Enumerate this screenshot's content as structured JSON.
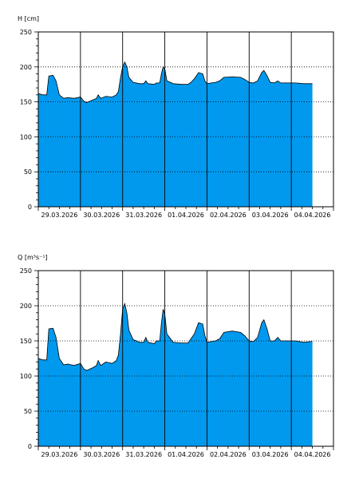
{
  "colors": {
    "fill": "#0099ee",
    "outline": "#000000",
    "grid_dotted": "#000000",
    "day_lines": "#000000",
    "frame": "#000000"
  },
  "chart_data": [
    {
      "type": "area",
      "ylabel": "H [cm]",
      "ylim": [
        0,
        250
      ],
      "yticks": [
        0,
        50,
        100,
        150,
        200,
        250
      ],
      "xlim": [
        0,
        7
      ],
      "x_tick_labels": [
        "29.03.2026",
        "30.03.2026",
        "31.03.2026",
        "01.04.2026",
        "02.04.2026",
        "03.04.2026",
        "04.04.2026"
      ],
      "grid": "dotted horizontal, solid vertical at day boundaries",
      "series": [
        {
          "points": [
            [
              0,
              162
            ],
            [
              0.1,
              160
            ],
            [
              0.2,
              160
            ],
            [
              0.25,
              187
            ],
            [
              0.35,
              188
            ],
            [
              0.42,
              180
            ],
            [
              0.5,
              160
            ],
            [
              0.6,
              155
            ],
            [
              0.7,
              156
            ],
            [
              0.85,
              155
            ],
            [
              1.0,
              157
            ],
            [
              1.08,
              151
            ],
            [
              1.15,
              149
            ],
            [
              1.3,
              153
            ],
            [
              1.38,
              155
            ],
            [
              1.42,
              160
            ],
            [
              1.48,
              155
            ],
            [
              1.6,
              158
            ],
            [
              1.75,
              157
            ],
            [
              1.85,
              160
            ],
            [
              1.9,
              165
            ],
            [
              1.95,
              185
            ],
            [
              2.0,
              200
            ],
            [
              2.05,
              207
            ],
            [
              2.1,
              200
            ],
            [
              2.15,
              185
            ],
            [
              2.25,
              178
            ],
            [
              2.4,
              176
            ],
            [
              2.5,
              176
            ],
            [
              2.55,
              180
            ],
            [
              2.6,
              176
            ],
            [
              2.75,
              175
            ],
            [
              2.8,
              177
            ],
            [
              2.88,
              177
            ],
            [
              2.92,
              190
            ],
            [
              2.96,
              200
            ],
            [
              3.0,
              197
            ],
            [
              3.05,
              180
            ],
            [
              3.2,
              176
            ],
            [
              3.4,
              175
            ],
            [
              3.55,
              175
            ],
            [
              3.62,
              178
            ],
            [
              3.7,
              183
            ],
            [
              3.8,
              192
            ],
            [
              3.9,
              190
            ],
            [
              3.95,
              180
            ],
            [
              4.0,
              176
            ],
            [
              4.2,
              178
            ],
            [
              4.3,
              180
            ],
            [
              4.4,
              185
            ],
            [
              4.6,
              186
            ],
            [
              4.8,
              185
            ],
            [
              4.9,
              182
            ],
            [
              5.0,
              178
            ],
            [
              5.1,
              177
            ],
            [
              5.2,
              180
            ],
            [
              5.3,
              192
            ],
            [
              5.35,
              195
            ],
            [
              5.42,
              188
            ],
            [
              5.5,
              178
            ],
            [
              5.6,
              177
            ],
            [
              5.68,
              180
            ],
            [
              5.75,
              177
            ],
            [
              5.9,
              177
            ],
            [
              6.1,
              177
            ],
            [
              6.3,
              176
            ],
            [
              6.45,
              176
            ],
            [
              6.5,
              176
            ]
          ]
        }
      ]
    },
    {
      "type": "area",
      "ylabel": "Q [m³s⁻¹]",
      "ylim": [
        0,
        250
      ],
      "yticks": [
        0,
        50,
        100,
        150,
        200,
        250
      ],
      "xlim": [
        0,
        7
      ],
      "x_tick_labels": [
        "29.03.2026",
        "30.03.2026",
        "31.03.2026",
        "01.04.2026",
        "02.04.2026",
        "03.04.2026",
        "04.04.2026"
      ],
      "grid": "dotted horizontal, solid vertical at day boundaries",
      "series": [
        {
          "points": [
            [
              0,
              125
            ],
            [
              0.1,
              123
            ],
            [
              0.2,
              123
            ],
            [
              0.25,
              167
            ],
            [
              0.35,
              168
            ],
            [
              0.42,
              155
            ],
            [
              0.5,
              125
            ],
            [
              0.6,
              116
            ],
            [
              0.7,
              117
            ],
            [
              0.85,
              115
            ],
            [
              1.0,
              118
            ],
            [
              1.08,
              110
            ],
            [
              1.15,
              108
            ],
            [
              1.3,
              112
            ],
            [
              1.38,
              115
            ],
            [
              1.42,
              122
            ],
            [
              1.48,
              115
            ],
            [
              1.6,
              120
            ],
            [
              1.75,
              118
            ],
            [
              1.85,
              122
            ],
            [
              1.9,
              130
            ],
            [
              1.95,
              160
            ],
            [
              2.0,
              195
            ],
            [
              2.05,
              203
            ],
            [
              2.1,
              190
            ],
            [
              2.15,
              165
            ],
            [
              2.25,
              152
            ],
            [
              2.4,
              148
            ],
            [
              2.5,
              148
            ],
            [
              2.55,
              155
            ],
            [
              2.6,
              148
            ],
            [
              2.75,
              146
            ],
            [
              2.8,
              150
            ],
            [
              2.88,
              150
            ],
            [
              2.92,
              175
            ],
            [
              2.96,
              195
            ],
            [
              3.0,
              188
            ],
            [
              3.05,
              160
            ],
            [
              3.2,
              148
            ],
            [
              3.4,
              147
            ],
            [
              3.55,
              147
            ],
            [
              3.62,
              153
            ],
            [
              3.7,
              160
            ],
            [
              3.8,
              176
            ],
            [
              3.9,
              174
            ],
            [
              3.95,
              158
            ],
            [
              4.0,
              148
            ],
            [
              4.2,
              150
            ],
            [
              4.3,
              153
            ],
            [
              4.4,
              162
            ],
            [
              4.6,
              164
            ],
            [
              4.8,
              162
            ],
            [
              4.9,
              157
            ],
            [
              5.0,
              150
            ],
            [
              5.1,
              149
            ],
            [
              5.2,
              155
            ],
            [
              5.3,
              176
            ],
            [
              5.35,
              180
            ],
            [
              5.42,
              168
            ],
            [
              5.5,
              150
            ],
            [
              5.6,
              150
            ],
            [
              5.68,
              155
            ],
            [
              5.75,
              150
            ],
            [
              5.9,
              150
            ],
            [
              6.1,
              150
            ],
            [
              6.3,
              148
            ],
            [
              6.45,
              149
            ],
            [
              6.5,
              149
            ]
          ]
        }
      ]
    }
  ]
}
